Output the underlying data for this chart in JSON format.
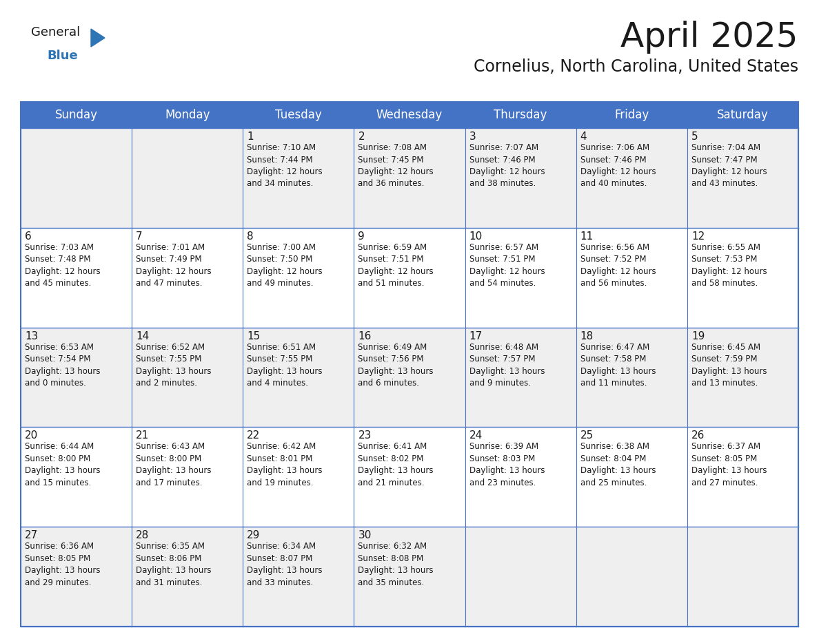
{
  "title": "April 2025",
  "subtitle": "Cornelius, North Carolina, United States",
  "header_color": "#4472C4",
  "header_text_color": "#FFFFFF",
  "row_colors": [
    "#EFEFEF",
    "#FFFFFF",
    "#EFEFEF",
    "#FFFFFF",
    "#EFEFEF"
  ],
  "border_color": "#4472C4",
  "day_names": [
    "Sunday",
    "Monday",
    "Tuesday",
    "Wednesday",
    "Thursday",
    "Friday",
    "Saturday"
  ],
  "title_fontsize": 36,
  "subtitle_fontsize": 17,
  "header_fontsize": 12,
  "day_num_fontsize": 11,
  "cell_text_fontsize": 8.5,
  "logo_general_color": "#1a1a1a",
  "logo_blue_color": "#2E75B6",
  "logo_triangle_color": "#2E75B6",
  "weeks": [
    [
      {
        "day": "",
        "info": ""
      },
      {
        "day": "",
        "info": ""
      },
      {
        "day": "1",
        "info": "Sunrise: 7:10 AM\nSunset: 7:44 PM\nDaylight: 12 hours\nand 34 minutes."
      },
      {
        "day": "2",
        "info": "Sunrise: 7:08 AM\nSunset: 7:45 PM\nDaylight: 12 hours\nand 36 minutes."
      },
      {
        "day": "3",
        "info": "Sunrise: 7:07 AM\nSunset: 7:46 PM\nDaylight: 12 hours\nand 38 minutes."
      },
      {
        "day": "4",
        "info": "Sunrise: 7:06 AM\nSunset: 7:46 PM\nDaylight: 12 hours\nand 40 minutes."
      },
      {
        "day": "5",
        "info": "Sunrise: 7:04 AM\nSunset: 7:47 PM\nDaylight: 12 hours\nand 43 minutes."
      }
    ],
    [
      {
        "day": "6",
        "info": "Sunrise: 7:03 AM\nSunset: 7:48 PM\nDaylight: 12 hours\nand 45 minutes."
      },
      {
        "day": "7",
        "info": "Sunrise: 7:01 AM\nSunset: 7:49 PM\nDaylight: 12 hours\nand 47 minutes."
      },
      {
        "day": "8",
        "info": "Sunrise: 7:00 AM\nSunset: 7:50 PM\nDaylight: 12 hours\nand 49 minutes."
      },
      {
        "day": "9",
        "info": "Sunrise: 6:59 AM\nSunset: 7:51 PM\nDaylight: 12 hours\nand 51 minutes."
      },
      {
        "day": "10",
        "info": "Sunrise: 6:57 AM\nSunset: 7:51 PM\nDaylight: 12 hours\nand 54 minutes."
      },
      {
        "day": "11",
        "info": "Sunrise: 6:56 AM\nSunset: 7:52 PM\nDaylight: 12 hours\nand 56 minutes."
      },
      {
        "day": "12",
        "info": "Sunrise: 6:55 AM\nSunset: 7:53 PM\nDaylight: 12 hours\nand 58 minutes."
      }
    ],
    [
      {
        "day": "13",
        "info": "Sunrise: 6:53 AM\nSunset: 7:54 PM\nDaylight: 13 hours\nand 0 minutes."
      },
      {
        "day": "14",
        "info": "Sunrise: 6:52 AM\nSunset: 7:55 PM\nDaylight: 13 hours\nand 2 minutes."
      },
      {
        "day": "15",
        "info": "Sunrise: 6:51 AM\nSunset: 7:55 PM\nDaylight: 13 hours\nand 4 minutes."
      },
      {
        "day": "16",
        "info": "Sunrise: 6:49 AM\nSunset: 7:56 PM\nDaylight: 13 hours\nand 6 minutes."
      },
      {
        "day": "17",
        "info": "Sunrise: 6:48 AM\nSunset: 7:57 PM\nDaylight: 13 hours\nand 9 minutes."
      },
      {
        "day": "18",
        "info": "Sunrise: 6:47 AM\nSunset: 7:58 PM\nDaylight: 13 hours\nand 11 minutes."
      },
      {
        "day": "19",
        "info": "Sunrise: 6:45 AM\nSunset: 7:59 PM\nDaylight: 13 hours\nand 13 minutes."
      }
    ],
    [
      {
        "day": "20",
        "info": "Sunrise: 6:44 AM\nSunset: 8:00 PM\nDaylight: 13 hours\nand 15 minutes."
      },
      {
        "day": "21",
        "info": "Sunrise: 6:43 AM\nSunset: 8:00 PM\nDaylight: 13 hours\nand 17 minutes."
      },
      {
        "day": "22",
        "info": "Sunrise: 6:42 AM\nSunset: 8:01 PM\nDaylight: 13 hours\nand 19 minutes."
      },
      {
        "day": "23",
        "info": "Sunrise: 6:41 AM\nSunset: 8:02 PM\nDaylight: 13 hours\nand 21 minutes."
      },
      {
        "day": "24",
        "info": "Sunrise: 6:39 AM\nSunset: 8:03 PM\nDaylight: 13 hours\nand 23 minutes."
      },
      {
        "day": "25",
        "info": "Sunrise: 6:38 AM\nSunset: 8:04 PM\nDaylight: 13 hours\nand 25 minutes."
      },
      {
        "day": "26",
        "info": "Sunrise: 6:37 AM\nSunset: 8:05 PM\nDaylight: 13 hours\nand 27 minutes."
      }
    ],
    [
      {
        "day": "27",
        "info": "Sunrise: 6:36 AM\nSunset: 8:05 PM\nDaylight: 13 hours\nand 29 minutes."
      },
      {
        "day": "28",
        "info": "Sunrise: 6:35 AM\nSunset: 8:06 PM\nDaylight: 13 hours\nand 31 minutes."
      },
      {
        "day": "29",
        "info": "Sunrise: 6:34 AM\nSunset: 8:07 PM\nDaylight: 13 hours\nand 33 minutes."
      },
      {
        "day": "30",
        "info": "Sunrise: 6:32 AM\nSunset: 8:08 PM\nDaylight: 13 hours\nand 35 minutes."
      },
      {
        "day": "",
        "info": ""
      },
      {
        "day": "",
        "info": ""
      },
      {
        "day": "",
        "info": ""
      }
    ]
  ]
}
